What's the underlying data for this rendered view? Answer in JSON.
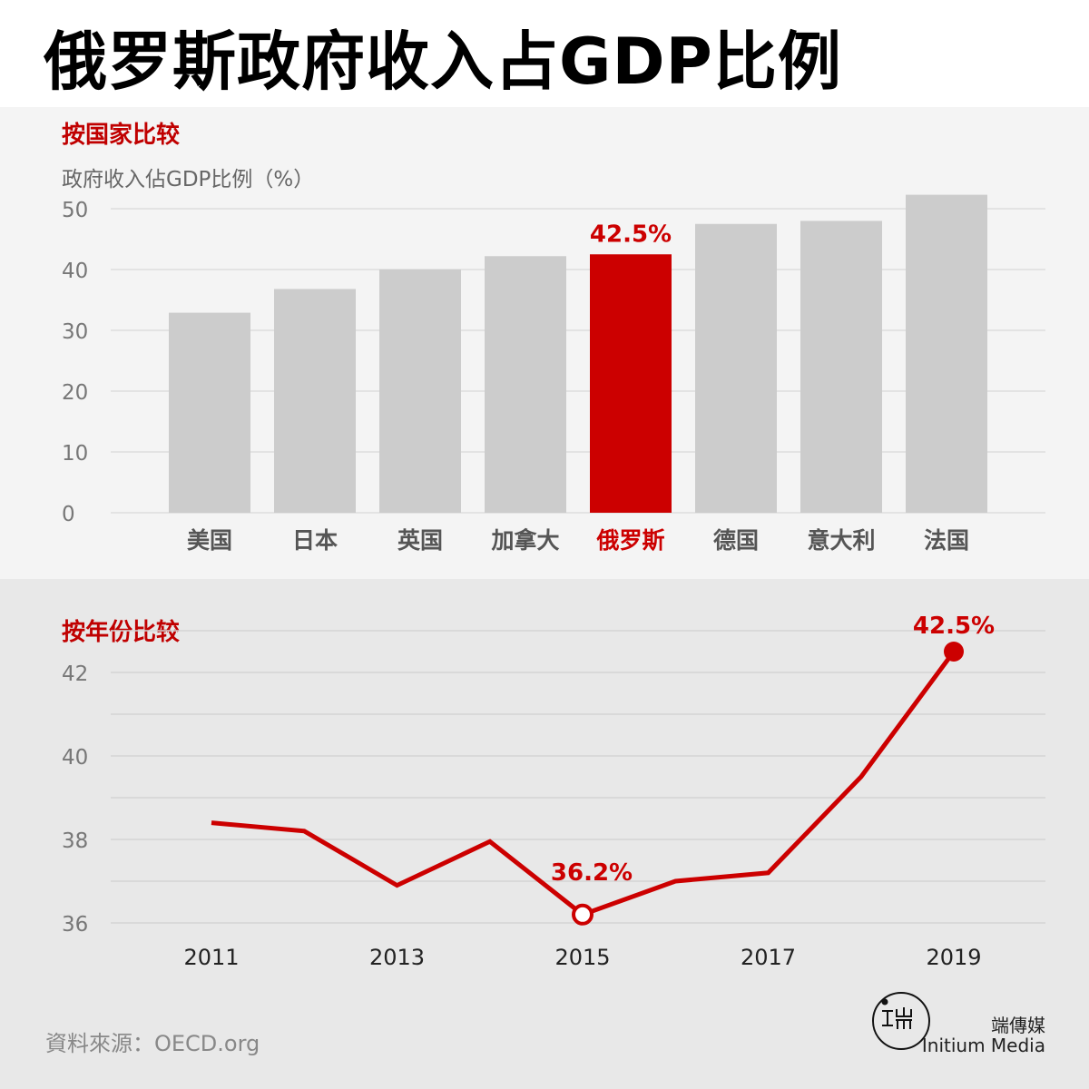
{
  "page": {
    "title": "俄罗斯政府收入占GDP比例",
    "source": "資料來源：OECD.org",
    "brand_zh": "端傳媒",
    "brand_en": "Initium Media"
  },
  "chart_data": [
    {
      "type": "bar",
      "title": "按国家比较",
      "ylabel": "政府收入佔GDP比例（%）",
      "categories": [
        "美国",
        "日本",
        "英国",
        "加拿大",
        "俄罗斯",
        "德国",
        "意大利",
        "法国"
      ],
      "values": [
        32.9,
        36.8,
        40.0,
        42.2,
        42.5,
        47.5,
        48.0,
        52.3
      ],
      "ylim": [
        0,
        50
      ],
      "yticks": [
        0,
        10,
        20,
        30,
        40,
        50
      ],
      "highlight": "俄罗斯",
      "highlight_label": "42.5%",
      "grid": true,
      "colors": {
        "bar": "#cccccc",
        "highlight": "#cc0000",
        "grid": "#dddddd"
      }
    },
    {
      "type": "line",
      "title": "按年份比较",
      "x": [
        2011,
        2012,
        2013,
        2014,
        2015,
        2016,
        2017,
        2018,
        2019
      ],
      "values": [
        38.4,
        38.2,
        36.9,
        37.95,
        36.2,
        37.0,
        37.2,
        39.5,
        42.5
      ],
      "xticks": [
        "2011",
        "2013",
        "2015",
        "2017",
        "2019"
      ],
      "yticks": [
        36,
        38,
        40,
        42
      ],
      "ylim": [
        36,
        43
      ],
      "annotations": [
        {
          "x": 2015,
          "label": "36.2%",
          "marker": "hollow"
        },
        {
          "x": 2019,
          "label": "42.5%",
          "marker": "filled"
        }
      ],
      "grid": true,
      "colors": {
        "line": "#cc0000",
        "grid": "#d4d4d4"
      }
    }
  ]
}
